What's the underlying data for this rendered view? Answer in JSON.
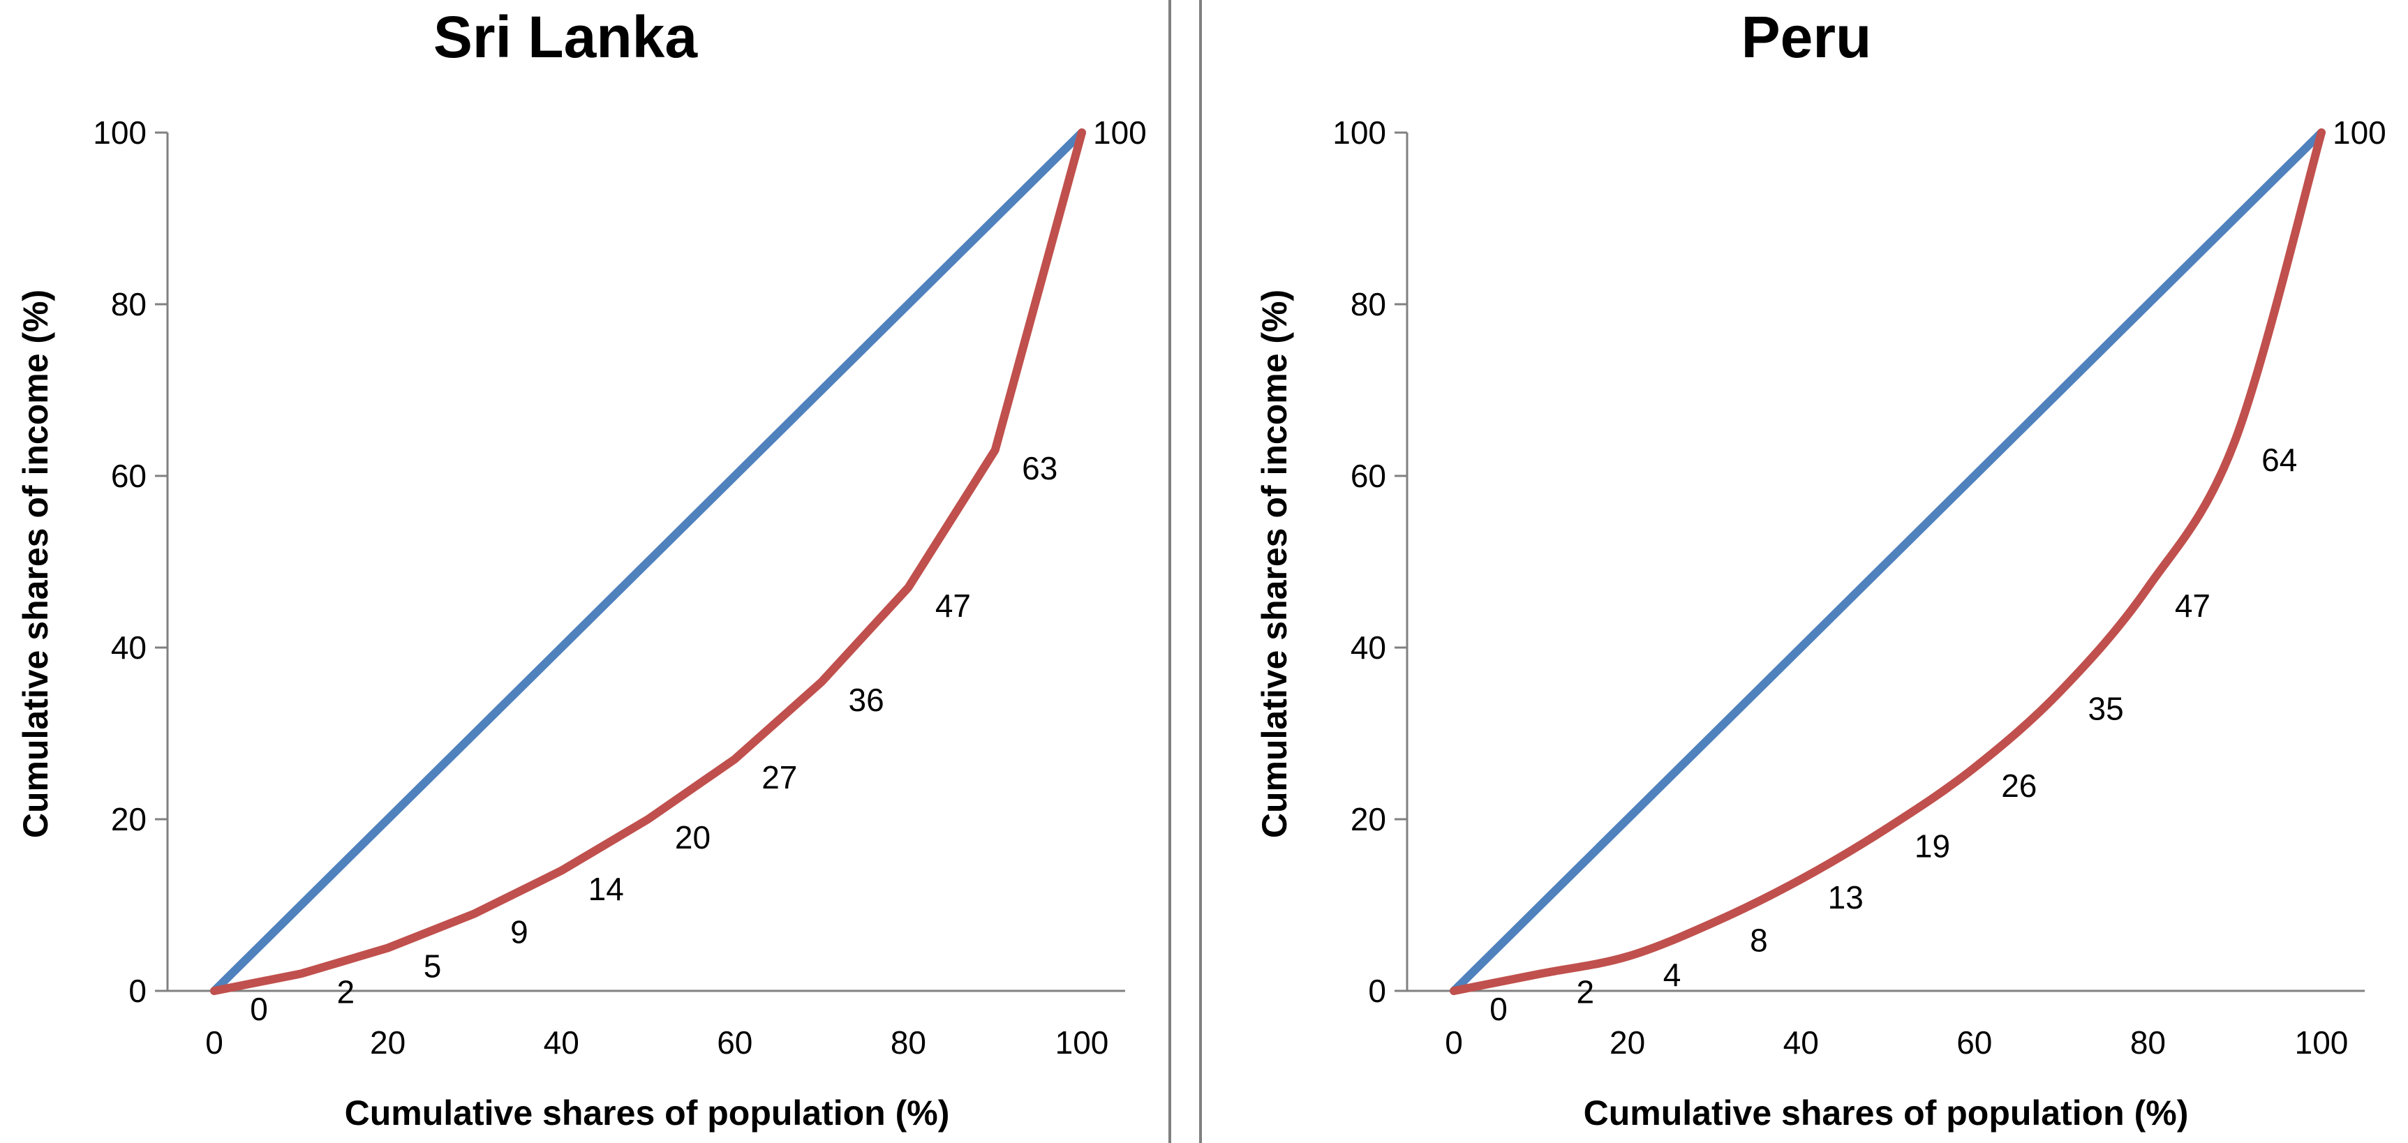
{
  "chart_data": [
    {
      "type": "line",
      "title": "Sri Lanka",
      "xlabel": "Cumulative shares of population (%)",
      "ylabel": "Cumulative shares of income (%)",
      "xlim": [
        0,
        100
      ],
      "ylim": [
        0,
        100
      ],
      "xticks": [
        "0",
        "20",
        "40",
        "60",
        "80",
        "100"
      ],
      "yticks": [
        "0",
        "20",
        "40",
        "60",
        "80",
        "100"
      ],
      "grid": false,
      "legend": "none",
      "series": [
        {
          "color": "#4f81bd",
          "x": [
            0,
            100
          ],
          "y": [
            0,
            100
          ]
        },
        {
          "color": "#c0504d",
          "smooth": false,
          "x": [
            0,
            10,
            20,
            30,
            40,
            50,
            60,
            70,
            80,
            90,
            100
          ],
          "y": [
            0,
            2,
            5,
            9,
            14,
            20,
            27,
            36,
            47,
            63,
            100
          ],
          "labels": [
            "0",
            "2",
            "5",
            "9",
            "14",
            "20",
            "27",
            "36",
            "47",
            "63",
            "100"
          ]
        }
      ]
    },
    {
      "type": "line",
      "title": "Peru",
      "xlabel": "Cumulative shares of population (%)",
      "ylabel": "Cumulative shares of income (%)",
      "xlim": [
        0,
        100
      ],
      "ylim": [
        0,
        100
      ],
      "xticks": [
        "0",
        "20",
        "40",
        "60",
        "80",
        "100"
      ],
      "yticks": [
        "0",
        "20",
        "40",
        "60",
        "80",
        "100"
      ],
      "grid": false,
      "legend": "none",
      "series": [
        {
          "color": "#4f81bd",
          "x": [
            0,
            100
          ],
          "y": [
            0,
            100
          ]
        },
        {
          "color": "#c0504d",
          "smooth": true,
          "x": [
            0,
            10,
            20,
            30,
            40,
            50,
            60,
            70,
            80,
            90,
            100
          ],
          "y": [
            0,
            2,
            4,
            8,
            13,
            19,
            26,
            35,
            47,
            64,
            100
          ],
          "labels": [
            "0",
            "2",
            "4",
            "8",
            "13",
            "19",
            "26",
            "35",
            "47",
            "64",
            "100"
          ]
        }
      ]
    }
  ]
}
